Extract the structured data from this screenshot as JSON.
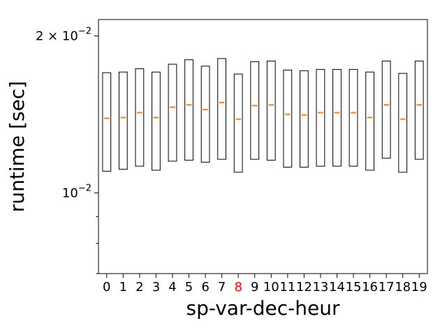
{
  "chart_data": {
    "type": "boxplot",
    "xlabel": "sp-var-dec-heur",
    "ylabel": "runtime [sec]",
    "yscale": "log",
    "ylim": [
      0.007,
      0.0215
    ],
    "grid": false,
    "categories": [
      "0",
      "1",
      "2",
      "3",
      "4",
      "5",
      "6",
      "7",
      "8",
      "9",
      "10",
      "11",
      "12",
      "13",
      "14",
      "15",
      "16",
      "17",
      "18",
      "19"
    ],
    "highlight_category": "8",
    "highlight_color": "#ff0000",
    "box_color": "#000000",
    "median_color": "#ff7f0e",
    "y_ticks": [
      {
        "value": 0.02,
        "base": "2 × 10",
        "exp": "−2"
      },
      {
        "value": 0.01,
        "base": "10",
        "exp": "−2"
      }
    ],
    "minor_ticks": [
      0.009,
      0.008,
      0.007
    ],
    "boxes": [
      {
        "q1": 0.011,
        "median": 0.0139,
        "q3": 0.017
      },
      {
        "q1": 0.0111,
        "median": 0.01395,
        "q3": 0.01705
      },
      {
        "q1": 0.01125,
        "median": 0.01425,
        "q3": 0.0173
      },
      {
        "q1": 0.01105,
        "median": 0.01395,
        "q3": 0.01705
      },
      {
        "q1": 0.0115,
        "median": 0.0146,
        "q3": 0.01765
      },
      {
        "q1": 0.01155,
        "median": 0.01475,
        "q3": 0.018
      },
      {
        "q1": 0.01145,
        "median": 0.01445,
        "q3": 0.0175
      },
      {
        "q1": 0.0116,
        "median": 0.0149,
        "q3": 0.0181
      },
      {
        "q1": 0.01095,
        "median": 0.01385,
        "q3": 0.0169
      },
      {
        "q1": 0.0116,
        "median": 0.0147,
        "q3": 0.01785
      },
      {
        "q1": 0.01155,
        "median": 0.01475,
        "q3": 0.0179
      },
      {
        "q1": 0.0112,
        "median": 0.01415,
        "q3": 0.0172
      },
      {
        "q1": 0.0112,
        "median": 0.0141,
        "q3": 0.01715
      },
      {
        "q1": 0.01125,
        "median": 0.01425,
        "q3": 0.01725
      },
      {
        "q1": 0.01125,
        "median": 0.01425,
        "q3": 0.01725
      },
      {
        "q1": 0.01125,
        "median": 0.01425,
        "q3": 0.01725
      },
      {
        "q1": 0.01105,
        "median": 0.01395,
        "q3": 0.01705
      },
      {
        "q1": 0.01165,
        "median": 0.01475,
        "q3": 0.0179
      },
      {
        "q1": 0.01095,
        "median": 0.01385,
        "q3": 0.01695
      },
      {
        "q1": 0.0116,
        "median": 0.01475,
        "q3": 0.0179
      }
    ]
  }
}
